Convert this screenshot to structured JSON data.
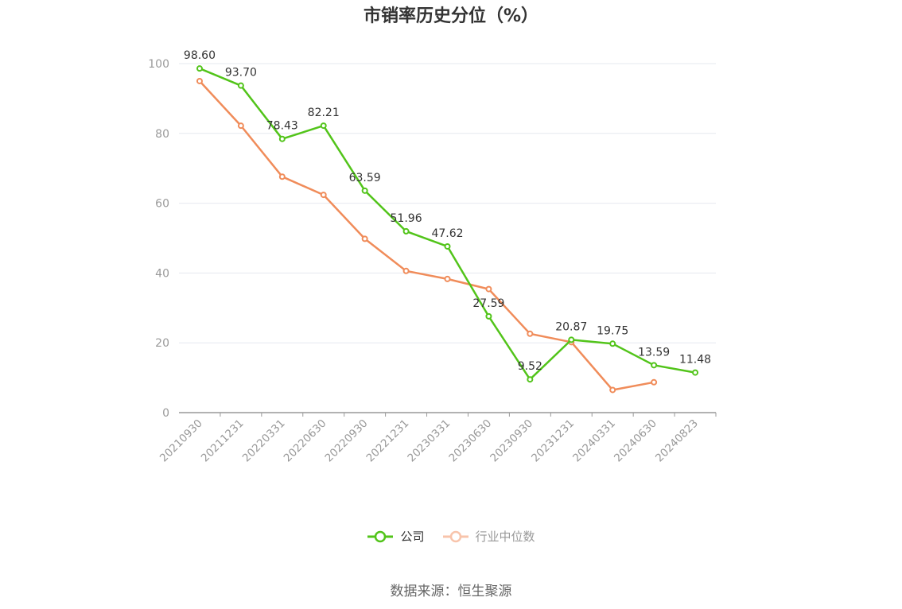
{
  "source_text": "数据来源：恒生聚源",
  "chart_data": {
    "type": "line",
    "title": "市销率历史分位（%）",
    "categories": [
      "20210930",
      "20211231",
      "20220331",
      "20220630",
      "20220930",
      "20221231",
      "20230331",
      "20230630",
      "20230930",
      "20231231",
      "20240331",
      "20240630",
      "20240823"
    ],
    "ylim": [
      0,
      100
    ],
    "yticks": [
      0,
      20,
      40,
      60,
      80,
      100
    ],
    "grid": true,
    "legend_position": "bottom",
    "series": [
      {
        "name": "公司",
        "color": "#52c41a",
        "values": [
          98.6,
          93.7,
          78.43,
          82.21,
          63.59,
          51.96,
          47.62,
          27.59,
          9.52,
          20.87,
          19.75,
          13.59,
          11.48
        ],
        "labels": [
          "98.60",
          "93.70",
          "78.43",
          "82.21",
          "63.59",
          "51.96",
          "47.62",
          "27.59",
          "9.52",
          "20.87",
          "19.75",
          "13.59",
          "11.48"
        ]
      },
      {
        "name": "行业中位数",
        "color": "#f08c5a",
        "values": [
          95.0,
          82.2,
          67.6,
          62.4,
          49.8,
          40.6,
          38.3,
          35.4,
          22.6,
          20.2,
          6.5,
          8.7,
          null
        ]
      }
    ]
  }
}
